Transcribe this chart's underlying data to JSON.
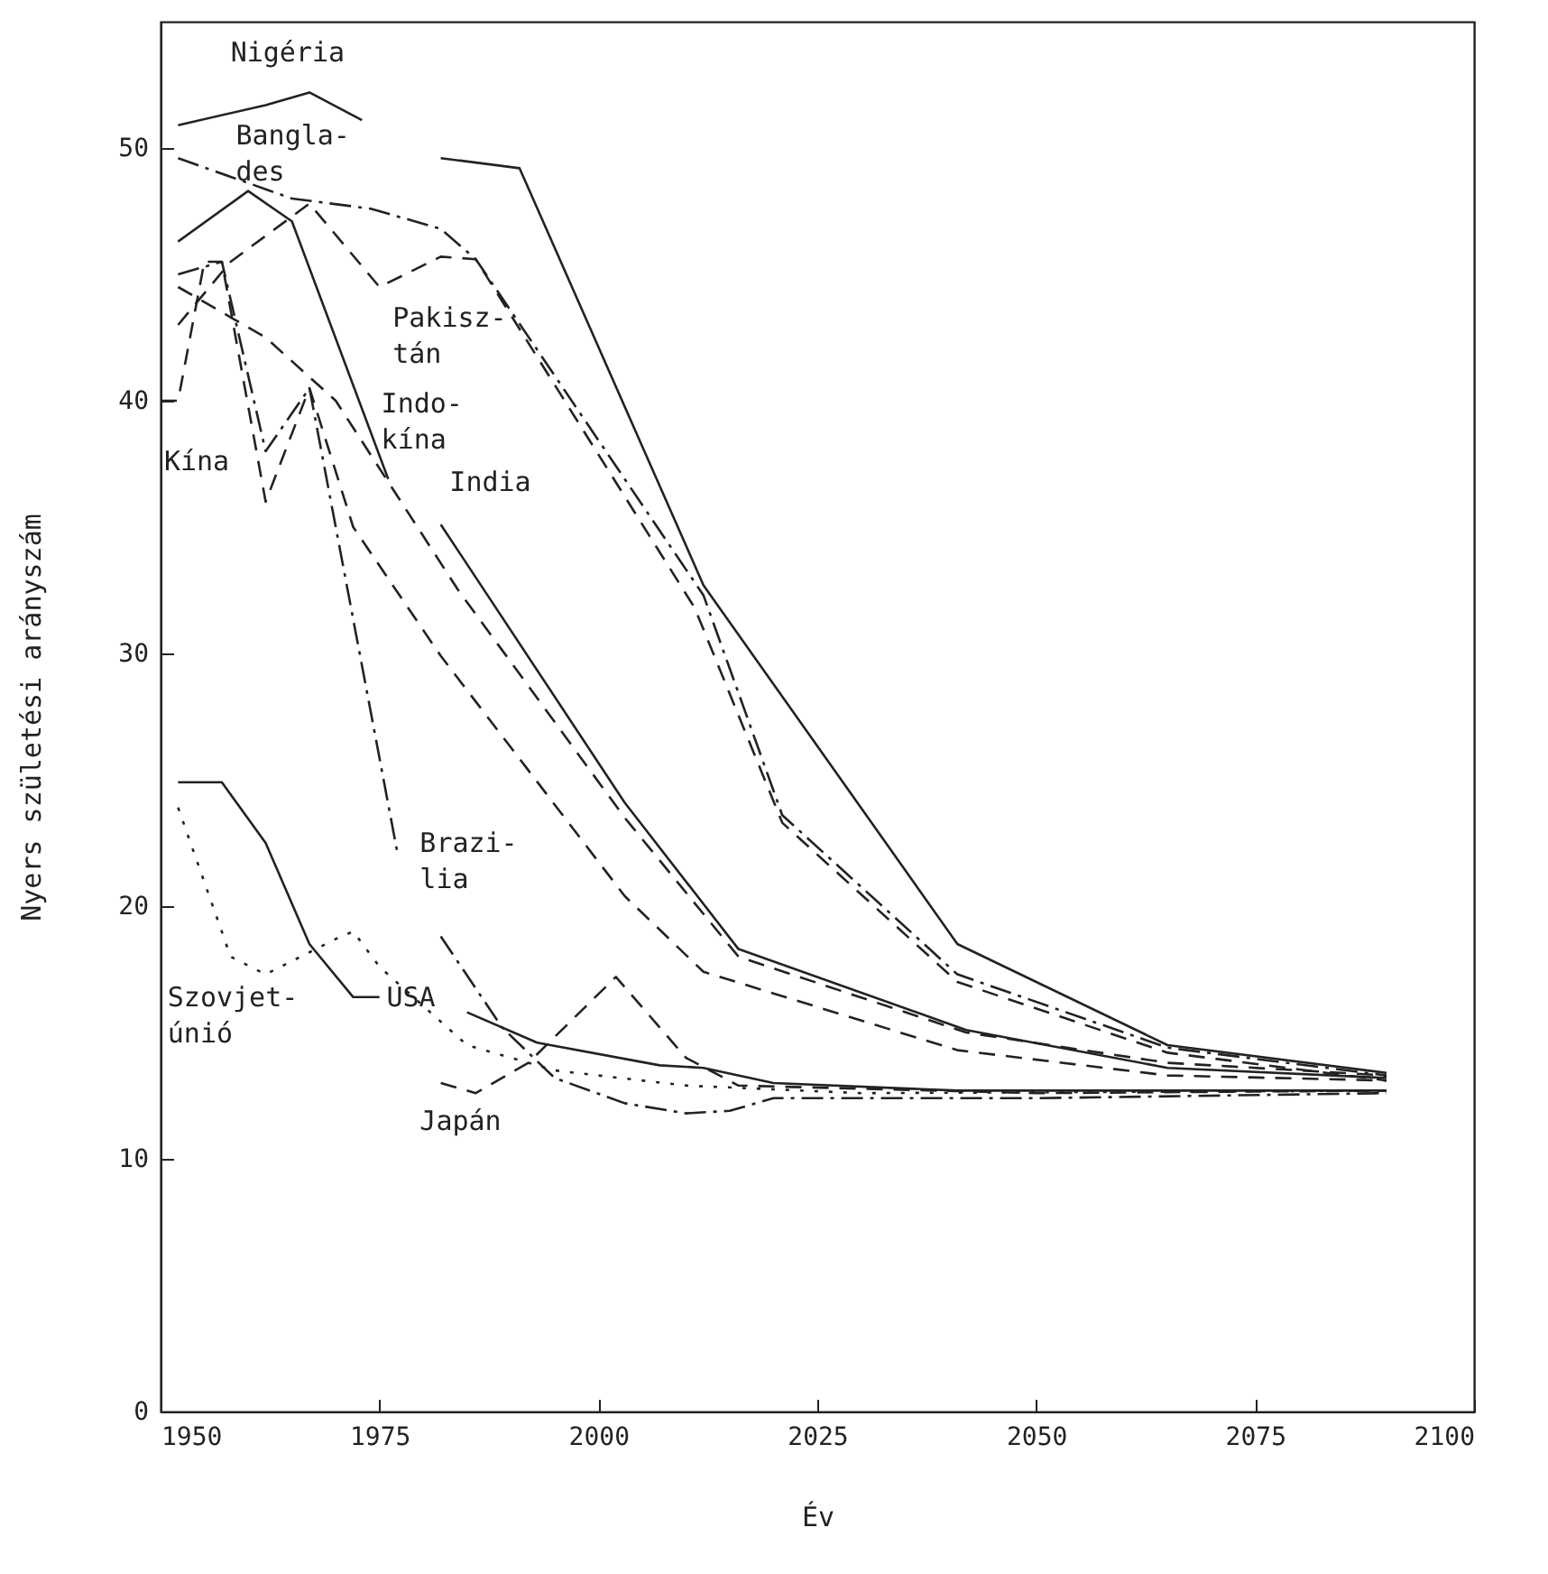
{
  "chart_data": {
    "type": "line",
    "xlabel": "Év",
    "ylabel": "Nyers születési arányszám",
    "xlim": [
      1950,
      2100
    ],
    "xticks": [
      1950,
      1975,
      2000,
      2025,
      2050,
      2075,
      2100
    ],
    "ylim": [
      0,
      55
    ],
    "yticks": [
      0,
      10,
      20,
      30,
      40,
      50
    ],
    "marker": "none",
    "series": [
      {
        "name": "Nigéria",
        "color": "#222222",
        "line_style": "solid",
        "x": [
          1952,
          1962,
          1967,
          1973,
          1977,
          1982,
          1991,
          2012,
          2041,
          2065,
          2090
        ],
        "values": [
          50.9,
          51.7,
          52.2,
          51.1,
          null,
          49.6,
          49.2,
          32.7,
          18.5,
          14.5,
          13.4
        ]
      },
      {
        "name": "Bangla-\ndes",
        "color": "#222222",
        "line_style": "dashdot",
        "x": [
          1952,
          1965,
          1974,
          1982,
          1986,
          2012,
          2021,
          2041,
          2065,
          2090
        ],
        "values": [
          49.6,
          48,
          47.6,
          46.8,
          45.6,
          32.3,
          23.6,
          17.3,
          14.4,
          13.3
        ]
      },
      {
        "name": "Pakisz-\ntán",
        "color": "#222222",
        "line_style": "dashed",
        "x": [
          1952,
          1958,
          1967,
          1975,
          1982,
          1986,
          2011,
          2021,
          2041,
          2065,
          2090
        ],
        "values": [
          43,
          45.5,
          47.8,
          44.5,
          45.7,
          45.6,
          31.8,
          23.3,
          17,
          14.2,
          13.1
        ]
      },
      {
        "name": "Indo-\nkína",
        "color": "#222222",
        "line_style": "dashed",
        "x": [
          1952,
          1962,
          1970,
          1984,
          2003,
          2016,
          2042,
          2065,
          2090
        ],
        "values": [
          44.5,
          42.5,
          40,
          32.5,
          23.5,
          18,
          15,
          13.8,
          13.3
        ]
      },
      {
        "name": "India",
        "color": "#222222",
        "line_style": "solid",
        "x": [
          1952,
          1960,
          1965,
          1976,
          1979,
          1982,
          2003,
          2016,
          2042,
          2065,
          2090
        ],
        "values": [
          46.3,
          48.3,
          47.1,
          36.9,
          null,
          35.1,
          24.1,
          18.3,
          15.1,
          13.6,
          13.2
        ]
      },
      {
        "name": "Kína",
        "color": "#222222",
        "line_style": "dashed",
        "x": [
          1950,
          1952,
          1955,
          1957,
          1962,
          1967,
          1972,
          1982,
          2003,
          2012,
          2041,
          2065,
          2090
        ],
        "values": [
          40,
          40,
          45.5,
          45.5,
          36,
          40.5,
          35,
          29.9,
          20.4,
          17.4,
          14.3,
          13.3,
          13.1
        ]
      },
      {
        "name": "Szovjet-\núnió",
        "color": "#222222",
        "line_style": "dotted",
        "x": [
          1952,
          1958,
          1962,
          1970,
          1972,
          1975,
          1985,
          1995,
          2010,
          2030,
          2090
        ],
        "values": [
          23.9,
          18,
          17.3,
          18.7,
          19,
          17.6,
          14.5,
          13.5,
          12.9,
          12.6,
          12.7
        ]
      },
      {
        "name": "Brazi-\nlia",
        "color": "#222222",
        "line_style": "dashdot",
        "x": [
          1952,
          1957,
          1962,
          1967,
          1977,
          1979,
          1982,
          1989,
          1995,
          2003,
          2010,
          2015,
          2020,
          2050,
          2090
        ],
        "values": [
          45,
          45.5,
          38,
          40.5,
          22.2,
          null,
          18.8,
          15.2,
          13.2,
          12.2,
          11.8,
          11.9,
          12.4,
          12.4,
          12.6
        ]
      },
      {
        "name": "USA",
        "color": "#222222",
        "line_style": "solid",
        "x": [
          1952,
          1957,
          1962,
          1967,
          1972,
          1975,
          1980,
          1985,
          1993,
          2007,
          2012,
          2020,
          2041,
          2090
        ],
        "values": [
          24.9,
          24.9,
          22.5,
          18.5,
          16.4,
          16.4,
          null,
          15.8,
          14.6,
          13.7,
          13.6,
          13,
          12.7,
          12.7
        ]
      },
      {
        "name": "Japán",
        "color": "#222222",
        "line_style": "dashed",
        "x": [
          1982,
          1986,
          1992,
          2002,
          2010,
          2016,
          2050,
          2090
        ],
        "values": [
          13,
          12.6,
          13.8,
          17.2,
          14,
          12.9,
          12.6,
          12.7
        ]
      }
    ]
  }
}
